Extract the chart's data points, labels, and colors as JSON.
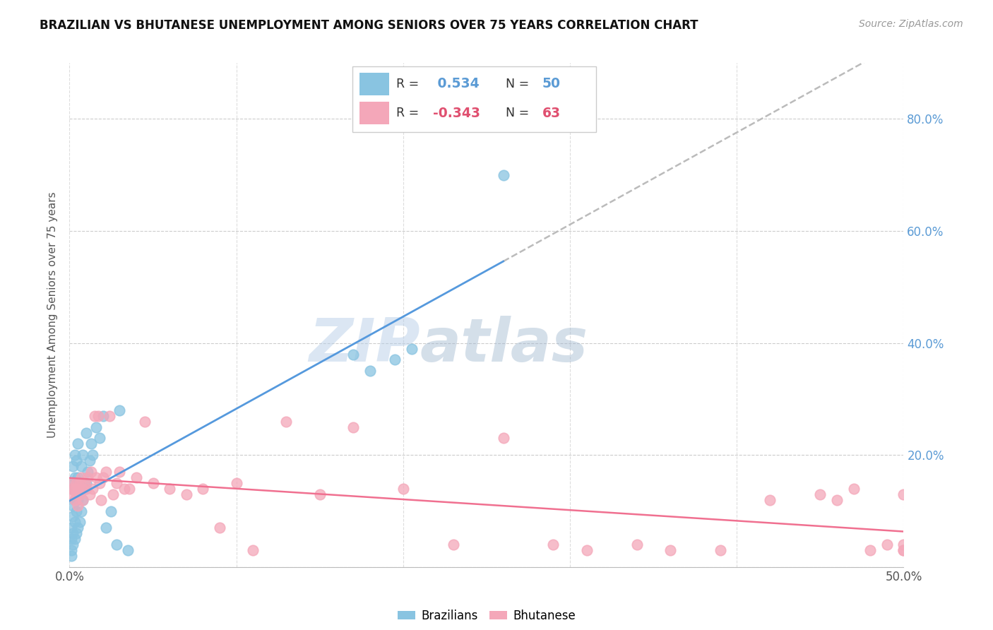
{
  "title": "BRAZILIAN VS BHUTANESE UNEMPLOYMENT AMONG SENIORS OVER 75 YEARS CORRELATION CHART",
  "source": "Source: ZipAtlas.com",
  "ylabel": "Unemployment Among Seniors over 75 years",
  "right_yticks": [
    "80.0%",
    "60.0%",
    "40.0%",
    "20.0%"
  ],
  "right_ytick_vals": [
    0.8,
    0.6,
    0.4,
    0.2
  ],
  "brazil_color": "#89c4e1",
  "bhutan_color": "#f4a7b9",
  "trend_brazil_color": "#5599dd",
  "trend_bhutan_color": "#f07090",
  "trend_dashed_color": "#bbbbbb",
  "watermark_zip": "ZIP",
  "watermark_atlas": "atlas",
  "brazil_x": [
    0.001,
    0.001,
    0.001,
    0.001,
    0.001,
    0.002,
    0.002,
    0.002,
    0.002,
    0.002,
    0.002,
    0.003,
    0.003,
    0.003,
    0.003,
    0.003,
    0.004,
    0.004,
    0.004,
    0.004,
    0.005,
    0.005,
    0.005,
    0.005,
    0.006,
    0.006,
    0.007,
    0.007,
    0.008,
    0.008,
    0.009,
    0.01,
    0.01,
    0.011,
    0.012,
    0.013,
    0.014,
    0.016,
    0.018,
    0.02,
    0.022,
    0.025,
    0.028,
    0.03,
    0.035,
    0.17,
    0.18,
    0.195,
    0.205,
    0.26
  ],
  "brazil_y": [
    0.02,
    0.03,
    0.05,
    0.07,
    0.14,
    0.04,
    0.06,
    0.09,
    0.11,
    0.15,
    0.18,
    0.05,
    0.08,
    0.12,
    0.16,
    0.2,
    0.06,
    0.1,
    0.14,
    0.19,
    0.07,
    0.12,
    0.16,
    0.22,
    0.08,
    0.14,
    0.1,
    0.18,
    0.12,
    0.2,
    0.14,
    0.15,
    0.24,
    0.17,
    0.19,
    0.22,
    0.2,
    0.25,
    0.23,
    0.27,
    0.07,
    0.1,
    0.04,
    0.28,
    0.03,
    0.38,
    0.35,
    0.37,
    0.39,
    0.7
  ],
  "bhutan_x": [
    0.001,
    0.002,
    0.002,
    0.003,
    0.003,
    0.004,
    0.004,
    0.005,
    0.005,
    0.006,
    0.006,
    0.007,
    0.008,
    0.008,
    0.009,
    0.01,
    0.011,
    0.012,
    0.013,
    0.014,
    0.015,
    0.016,
    0.017,
    0.018,
    0.019,
    0.02,
    0.022,
    0.024,
    0.026,
    0.028,
    0.03,
    0.033,
    0.036,
    0.04,
    0.045,
    0.05,
    0.06,
    0.07,
    0.08,
    0.09,
    0.1,
    0.11,
    0.13,
    0.15,
    0.17,
    0.2,
    0.23,
    0.26,
    0.29,
    0.31,
    0.34,
    0.36,
    0.39,
    0.42,
    0.45,
    0.46,
    0.47,
    0.48,
    0.49,
    0.5,
    0.5,
    0.5,
    0.5
  ],
  "bhutan_y": [
    0.14,
    0.15,
    0.13,
    0.12,
    0.14,
    0.15,
    0.13,
    0.14,
    0.11,
    0.15,
    0.13,
    0.16,
    0.14,
    0.12,
    0.15,
    0.14,
    0.16,
    0.13,
    0.17,
    0.14,
    0.27,
    0.16,
    0.27,
    0.15,
    0.12,
    0.16,
    0.17,
    0.27,
    0.13,
    0.15,
    0.17,
    0.14,
    0.14,
    0.16,
    0.26,
    0.15,
    0.14,
    0.13,
    0.14,
    0.07,
    0.15,
    0.03,
    0.26,
    0.13,
    0.25,
    0.14,
    0.04,
    0.23,
    0.04,
    0.03,
    0.04,
    0.03,
    0.03,
    0.12,
    0.13,
    0.12,
    0.14,
    0.03,
    0.04,
    0.03,
    0.13,
    0.04,
    0.03
  ],
  "xmin": 0.0,
  "xmax": 0.5,
  "ymin": 0.0,
  "ymax": 0.9,
  "trend_brazil_x_start": 0.0,
  "trend_brazil_x_end": 0.26,
  "trend_brazil_dashed_x_start": 0.26,
  "trend_brazil_dashed_x_end": 0.5
}
